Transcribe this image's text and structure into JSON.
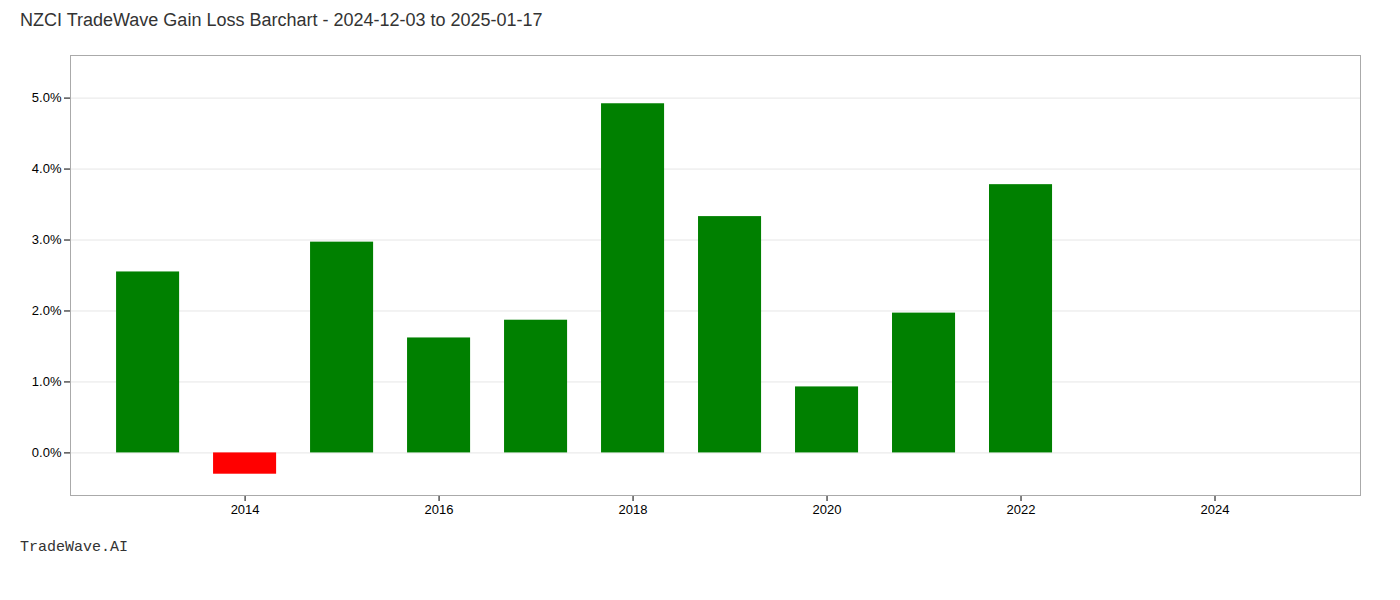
{
  "chart_data": {
    "type": "bar",
    "title": "NZCI TradeWave Gain Loss Barchart - 2024-12-03 to 2025-01-17",
    "annotations": [
      "TradeWave.AI"
    ],
    "x": [
      2013,
      2014,
      2015,
      2016,
      2017,
      2018,
      2019,
      2020,
      2021,
      2022
    ],
    "values": [
      0.0255,
      -0.003,
      0.0297,
      0.0162,
      0.0187,
      0.0492,
      0.0333,
      0.0093,
      0.0197,
      0.0378
    ],
    "colors": [
      "#008000",
      "#ff0000",
      "#008000",
      "#008000",
      "#008000",
      "#008000",
      "#008000",
      "#008000",
      "#008000",
      "#008000"
    ],
    "xlim": [
      2012.2,
      2025.5
    ],
    "xticks": [
      2014,
      2016,
      2018,
      2020,
      2022,
      2024
    ],
    "ylim": [
      -0.006,
      0.056
    ],
    "yticks": [
      {
        "value": 0.0,
        "label": "0.0%"
      },
      {
        "value": 0.01,
        "label": "1.0%"
      },
      {
        "value": 0.02,
        "label": "2.0%"
      },
      {
        "value": 0.03,
        "label": "3.0%"
      },
      {
        "value": 0.04,
        "label": "4.0%"
      },
      {
        "value": 0.05,
        "label": "5.0%"
      }
    ],
    "grid": true
  }
}
